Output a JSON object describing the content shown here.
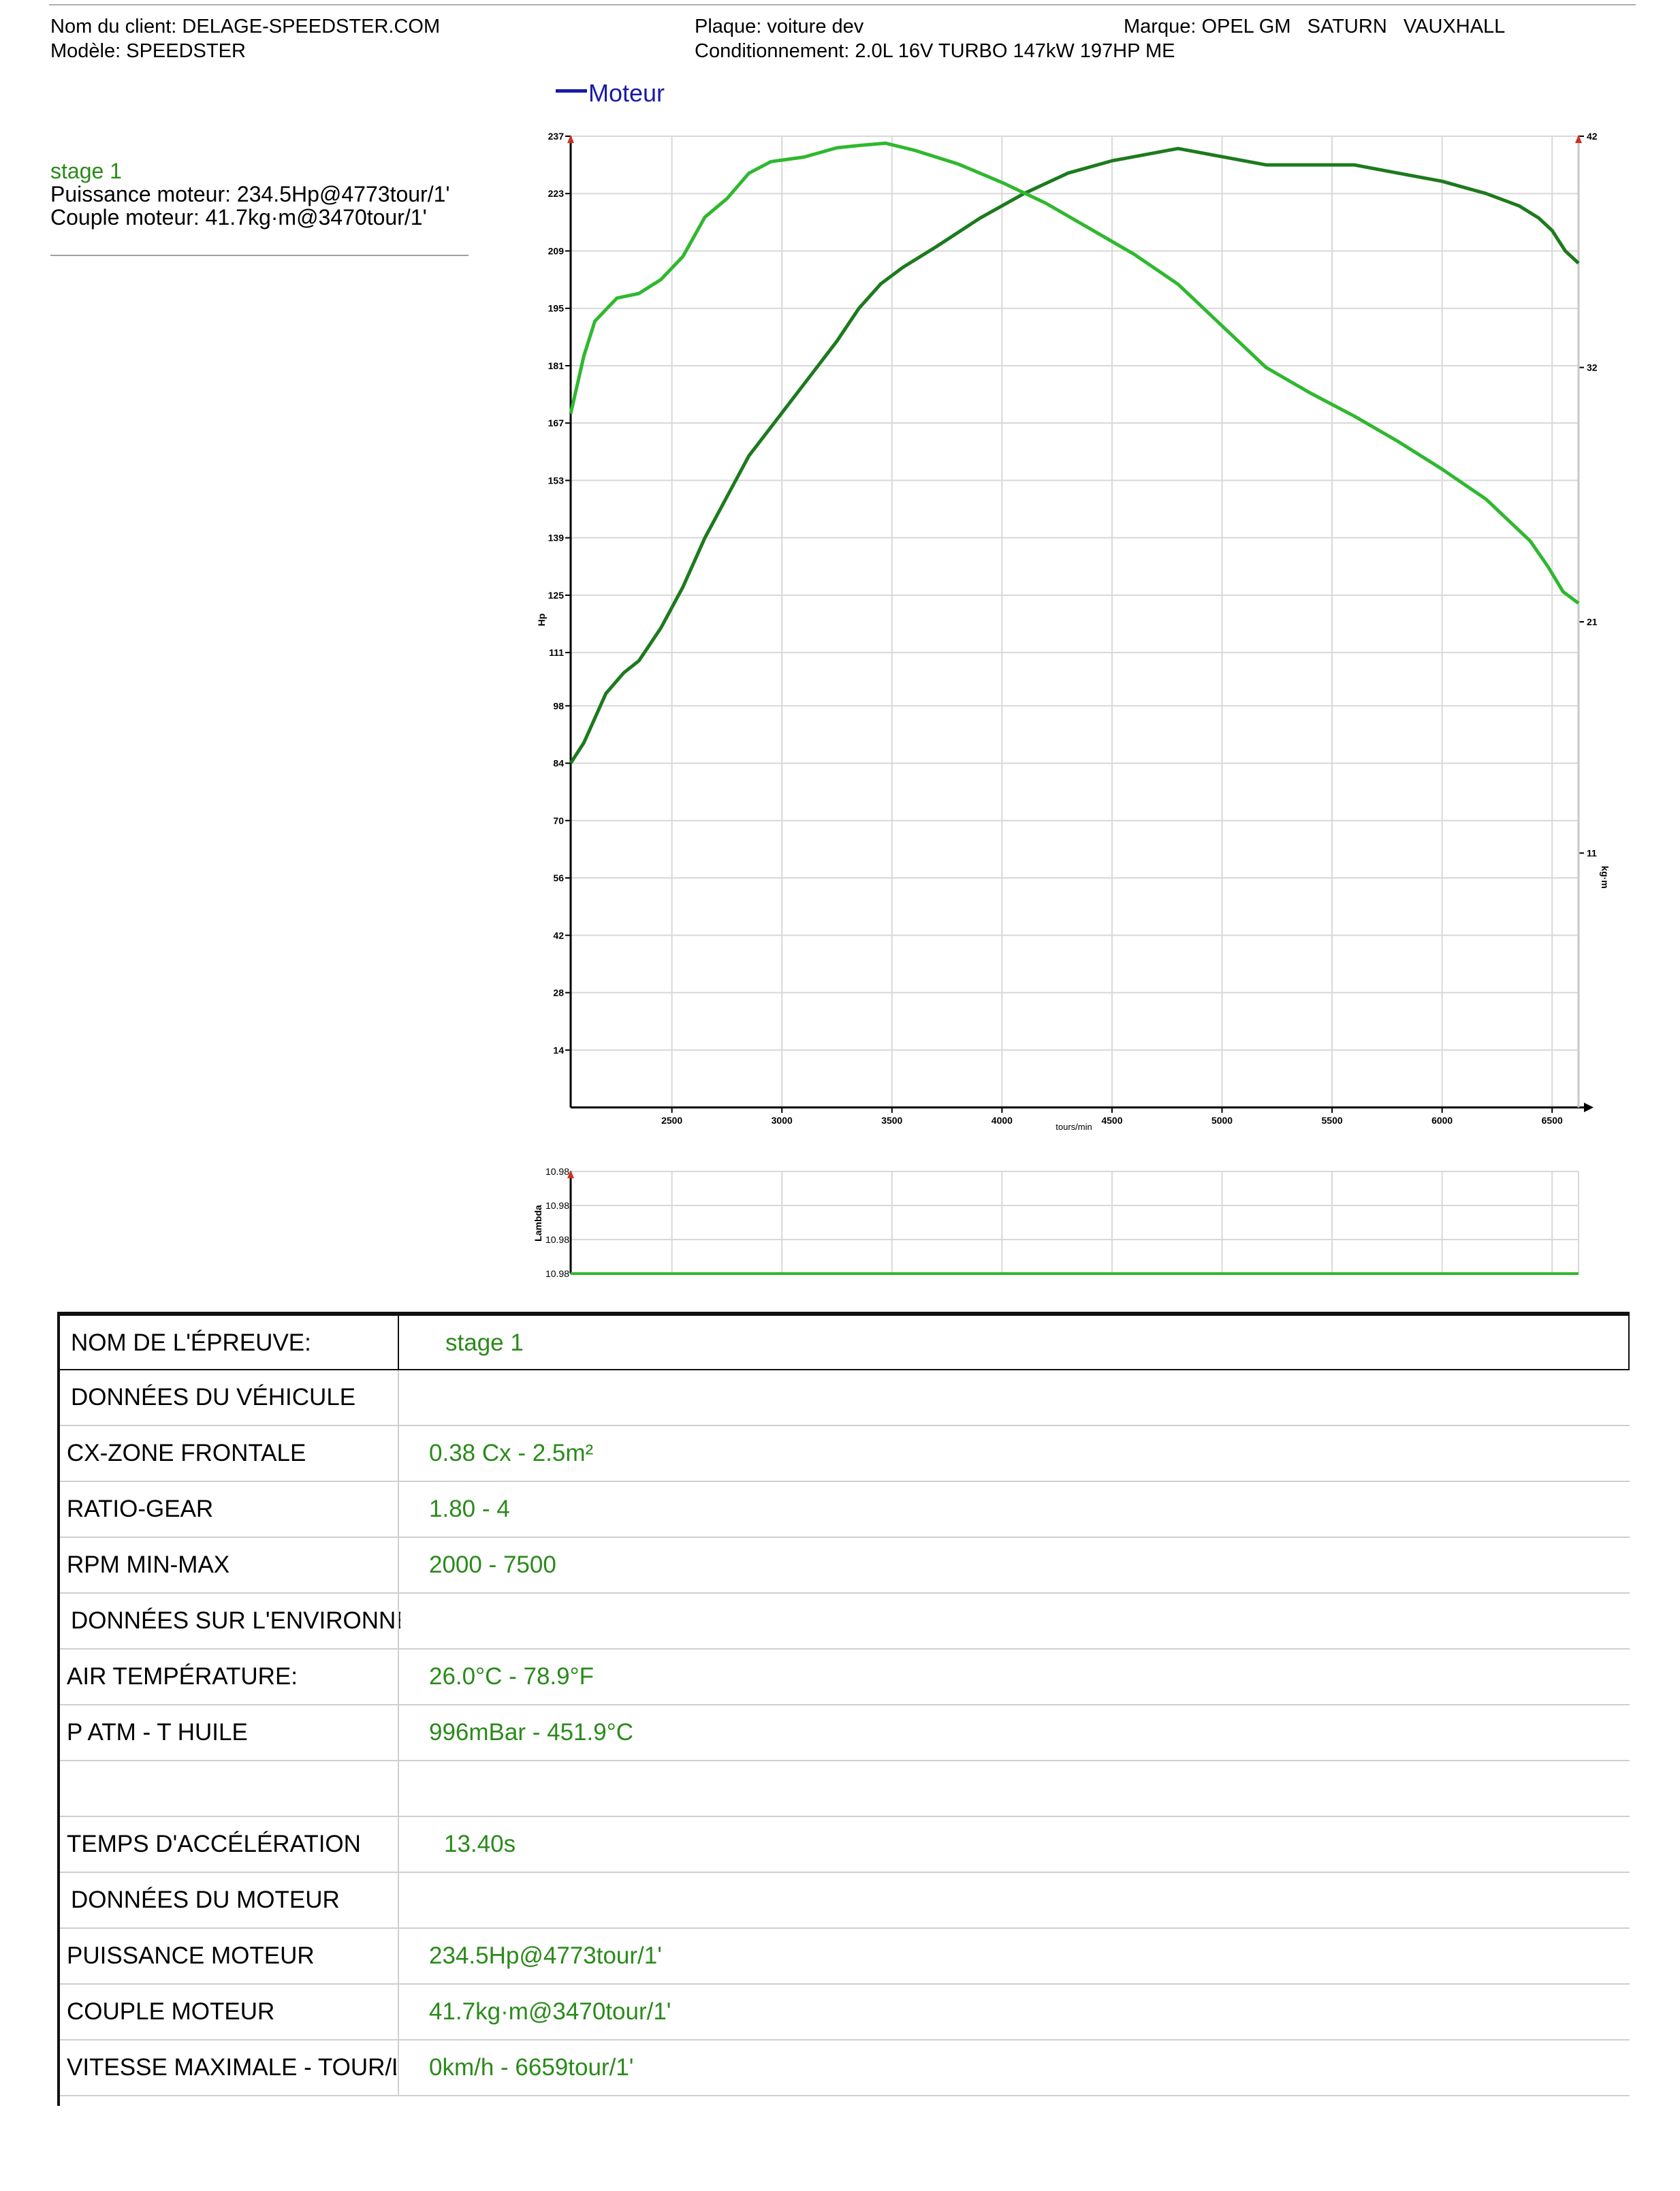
{
  "header": {
    "client": "Nom du client: DELAGE-SPEEDSTER.COM",
    "model": "Modèle: SPEEDSTER",
    "plate": "Plaque: voiture dev",
    "packaging": "Conditionnement: 2.0L 16V TURBO 147kW 197HP ME",
    "brand": "Marque: OPEL GM   SATURN   VAUXHALL"
  },
  "legend": {
    "label": "Moteur",
    "color": "#1a1aa6"
  },
  "summary": {
    "title": "stage 1",
    "power": "Puissance moteur: 234.5Hp@4773tour/1'",
    "torque": "Couple moteur: 41.7kg·m@3470tour/1'"
  },
  "colors": {
    "power_curve": "#1d7a1d",
    "torque_curve": "#2fb82f",
    "lambda_line": "#2fb82f",
    "value_text": "#2a8a1a"
  },
  "chart_data": [
    {
      "type": "line",
      "xlabel": "tours/min",
      "ylabel": "Hp",
      "y2label": "kg·m",
      "xlim": [
        2040,
        6620
      ],
      "ylim": [
        0,
        237
      ],
      "y2lim": [
        0,
        42
      ],
      "x_ticks": [
        "2500",
        "3000",
        "3500",
        "4000",
        "4500",
        "5000",
        "5500",
        "6000",
        "6500"
      ],
      "y_ticks": [
        "14",
        "28",
        "42",
        "56",
        "70",
        "84",
        "98",
        "111",
        "125",
        "139",
        "153",
        "167",
        "181",
        "195",
        "209",
        "223",
        "237"
      ],
      "y2_ticks": [
        "11",
        "21",
        "32",
        "42"
      ],
      "grid": true,
      "series": [
        {
          "axis": "left",
          "x": [
            2040,
            2100,
            2200,
            2280,
            2350,
            2450,
            2550,
            2650,
            2750,
            2850,
            2950,
            3050,
            3150,
            3250,
            3350,
            3450,
            3550,
            3700,
            3900,
            4100,
            4300,
            4500,
            4700,
            4800,
            5000,
            5200,
            5400,
            5600,
            5800,
            6000,
            6200,
            6350,
            6440,
            6500,
            6560,
            6620
          ],
          "y": [
            84,
            89,
            101,
            106,
            109,
            117,
            127,
            139,
            149,
            159,
            166,
            173,
            180,
            187,
            195,
            201,
            205,
            210,
            217,
            223,
            228,
            231,
            233,
            234,
            232,
            230,
            230,
            230,
            228,
            226,
            223,
            220,
            217,
            214,
            209,
            206
          ]
        },
        {
          "axis": "right",
          "x": [
            2040,
            2100,
            2150,
            2250,
            2350,
            2450,
            2550,
            2650,
            2750,
            2850,
            2950,
            3100,
            3250,
            3350,
            3470,
            3600,
            3800,
            4000,
            4200,
            4400,
            4600,
            4800,
            5000,
            5200,
            5400,
            5600,
            5800,
            6000,
            6200,
            6400,
            6480,
            6550,
            6620
          ],
          "y": [
            30,
            32.5,
            34,
            35,
            35.2,
            35.8,
            36.8,
            38.5,
            39.3,
            40.4,
            40.9,
            41.1,
            41.5,
            41.6,
            41.7,
            41.4,
            40.8,
            40.0,
            39.1,
            38.0,
            36.9,
            35.6,
            33.8,
            32.0,
            30.9,
            29.9,
            28.8,
            27.6,
            26.3,
            24.5,
            23.4,
            22.3,
            21.8
          ]
        }
      ]
    },
    {
      "type": "line",
      "ylabel": "Lambda",
      "y_ticks": [
        "10.98",
        "10.98",
        "10.98",
        "10.98"
      ],
      "xlim": [
        2040,
        6620
      ],
      "series": [
        {
          "x": [
            2040,
            6620
          ],
          "y": [
            10.98,
            10.98
          ]
        }
      ]
    }
  ],
  "table": {
    "rows": [
      {
        "label": "NOM DE L'ÉPREUVE:",
        "value": "stage 1"
      },
      {
        "label": "DONNÉES DU VÉHICULE",
        "value": ""
      },
      {
        "label": "CX-ZONE FRONTALE",
        "value": "0.38 Cx - 2.5m²"
      },
      {
        "label": "RATIO-GEAR",
        "value": "1.80 - 4"
      },
      {
        "label": "RPM MIN-MAX",
        "value": "2000 - 7500"
      },
      {
        "label": "DONNÉES SUR L'ENVIRONNEMENT",
        "value": ""
      },
      {
        "label": "AIR TEMPÉRATURE:",
        "value": "26.0°C - 78.9°F"
      },
      {
        "label": "P ATM - T HUILE",
        "value": "996mBar - 451.9°C"
      },
      {
        "label": "",
        "value": ""
      },
      {
        "label": "TEMPS D'ACCÉLÉRATION",
        "value": "13.40s"
      },
      {
        "label": "DONNÉES DU MOTEUR",
        "value": ""
      },
      {
        "label": "PUISSANCE MOTEUR",
        "value": "234.5Hp@4773tour/1'"
      },
      {
        "label": "COUPLE MOTEUR",
        "value": "41.7kg·m@3470tour/1'"
      },
      {
        "label": "VITESSE MAXIMALE - TOUR/L'",
        "value": "0km/h - 6659tour/1'"
      }
    ]
  }
}
